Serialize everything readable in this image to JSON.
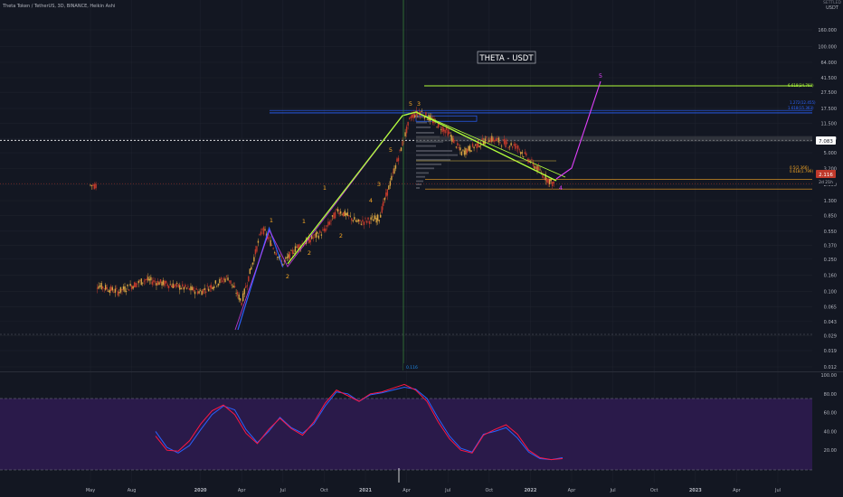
{
  "header": {
    "symbol_line": "Theta Token / TetherUS, 3D, BINANCE, Heikin Ashi"
  },
  "watermark": "THETA - USDT",
  "right_axis_top": [
    "SETTLED",
    "USDT"
  ],
  "colors": {
    "background": "#131722",
    "grid": "#1e222d",
    "candle_up": "#d9a441",
    "candle_down": "#c0392b",
    "fib_green": "#b2ff3b",
    "fib_blue": "#2962ff",
    "elliott_label_orange": "#f5a623",
    "elliott_label_pink": "#e040fb",
    "stoch_k": "#2962ff",
    "stoch_d": "#ff1744",
    "stoch_band": "#2a1a4a"
  },
  "price_levels": {
    "fib_target": "6.618(34.760)",
    "level_1618": "1.618(15.363)",
    "level_1272": "1.272(12.455)",
    "marker_current": "7.083",
    "price_current": "2.116",
    "price_secondary": "2d 21h",
    "level_0618": "0.618(1.799)",
    "level_05": "0.5(2.366)",
    "vertical_label": "0.116"
  },
  "chart_data": [
    {
      "type": "candlestick",
      "title": "",
      "price_scale": "log",
      "y_ticks": [
        "160.000",
        "100.000",
        "64.000",
        "41.500",
        "27.500",
        "17.500",
        "11.500",
        "7.500",
        "5.000",
        "3.200",
        "2.050",
        "1.300",
        "0.850",
        "0.550",
        "0.370",
        "0.250",
        "0.160",
        "0.100",
        "0.065",
        "0.043",
        "0.029",
        "0.019",
        "0.012"
      ],
      "x_ticks": [
        "May",
        "Aug",
        "2020",
        "Apr",
        "Jul",
        "Oct",
        "2021",
        "Apr",
        "Jul",
        "Oct",
        "2022",
        "Apr",
        "Jul",
        "Oct",
        "2023",
        "Apr",
        "Jul"
      ],
      "elliott_labels": [
        {
          "text": "1",
          "color": "orange"
        },
        {
          "text": "2",
          "color": "orange"
        },
        {
          "text": "1",
          "color": "orange"
        },
        {
          "text": "2",
          "color": "orange"
        },
        {
          "text": "1",
          "color": "orange"
        },
        {
          "text": "2",
          "color": "orange"
        },
        {
          "text": "3",
          "color": "orange"
        },
        {
          "text": "4",
          "color": "orange"
        },
        {
          "text": "5",
          "color": "orange"
        },
        {
          "text": "3",
          "color": "orange"
        },
        {
          "text": "5",
          "color": "orange"
        },
        {
          "text": "4",
          "color": "pink"
        },
        {
          "text": "5",
          "color": "pink"
        }
      ],
      "wave_path_prices": [
        0.075,
        0.6,
        0.2,
        1.0,
        0.7,
        15.5,
        16.5,
        1.75,
        33.0
      ],
      "wave_path_dates": [
        "2020-04-01",
        "2020-06-01",
        "2020-07-01",
        "2020-11-01",
        "2020-12-20",
        "2021-04-01",
        "2021-04-10",
        "2022-03-01",
        "2022-06-15"
      ]
    },
    {
      "type": "line",
      "title": "",
      "y_ticks": [
        "100.00",
        "80.00",
        "60.00",
        "40.00",
        "20.00"
      ],
      "ylim": [
        0,
        100
      ],
      "band": [
        20,
        80
      ],
      "series": [
        {
          "values": [
            40,
            23,
            17,
            25,
            42,
            58,
            67,
            63,
            42,
            28,
            40,
            55,
            44,
            38,
            48,
            67,
            82,
            80,
            72,
            79,
            81,
            84,
            87,
            85,
            75,
            54,
            35,
            22,
            18,
            37,
            40,
            44,
            33,
            18,
            11,
            10,
            12
          ]
        },
        {
          "values": [
            35,
            20,
            19,
            30,
            48,
            62,
            68,
            58,
            38,
            27,
            42,
            54,
            43,
            36,
            50,
            70,
            84,
            78,
            72,
            80,
            82,
            86,
            90,
            84,
            72,
            50,
            32,
            20,
            17,
            36,
            42,
            47,
            37,
            20,
            12,
            10,
            11
          ]
        }
      ]
    }
  ]
}
